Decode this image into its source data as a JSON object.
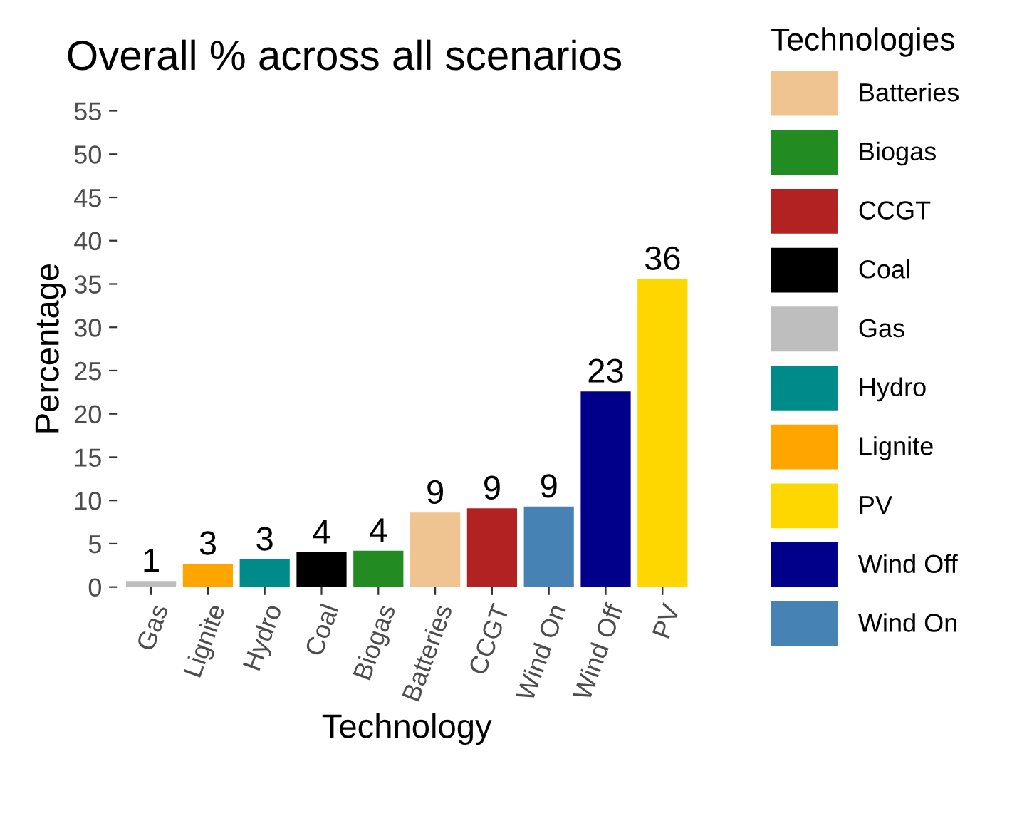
{
  "chart_data": {
    "type": "bar",
    "title": "Overall % across all scenarios",
    "xlabel": "Technology",
    "ylabel": "Percentage",
    "legend_title": "Technologies",
    "legend": "right",
    "grid": false,
    "categories": [
      "Gas",
      "Lignite",
      "Hydro",
      "Coal",
      "Biogas",
      "Batteries",
      "CCGT",
      "Wind On",
      "Wind Off",
      "PV"
    ],
    "ylim": [
      0,
      55
    ],
    "yticks": [
      0,
      5,
      10,
      15,
      20,
      25,
      30,
      35,
      40,
      45,
      50,
      55
    ],
    "series": [
      {
        "name": "Batteries",
        "color": "#f0c490",
        "values": [
          null,
          null,
          null,
          null,
          null,
          8.6,
          null,
          null,
          null,
          null
        ],
        "value_labels": [
          null,
          null,
          null,
          null,
          null,
          "9",
          null,
          null,
          null,
          null
        ]
      },
      {
        "name": "Biogas",
        "color": "#228b22",
        "values": [
          null,
          null,
          null,
          null,
          4.2,
          null,
          null,
          null,
          null,
          null
        ],
        "value_labels": [
          null,
          null,
          null,
          null,
          "4",
          null,
          null,
          null,
          null,
          null
        ]
      },
      {
        "name": "CCGT",
        "color": "#b22222",
        "values": [
          null,
          null,
          null,
          null,
          null,
          null,
          9.1,
          null,
          null,
          null
        ],
        "value_labels": [
          null,
          null,
          null,
          null,
          null,
          null,
          "9",
          null,
          null,
          null
        ]
      },
      {
        "name": "Coal",
        "color": "#000000",
        "values": [
          null,
          null,
          null,
          4.0,
          null,
          null,
          null,
          null,
          null,
          null
        ],
        "value_labels": [
          null,
          null,
          null,
          "4",
          null,
          null,
          null,
          null,
          null,
          null
        ]
      },
      {
        "name": "Gas",
        "color": "#bebebe",
        "values": [
          0.7,
          null,
          null,
          null,
          null,
          null,
          null,
          null,
          null,
          null
        ],
        "value_labels": [
          "1",
          null,
          null,
          null,
          null,
          null,
          null,
          null,
          null,
          null
        ]
      },
      {
        "name": "Hydro",
        "color": "#008b8b",
        "values": [
          null,
          null,
          3.2,
          null,
          null,
          null,
          null,
          null,
          null,
          null
        ],
        "value_labels": [
          null,
          null,
          "3",
          null,
          null,
          null,
          null,
          null,
          null,
          null
        ]
      },
      {
        "name": "Lignite",
        "color": "#ffa500",
        "values": [
          null,
          2.7,
          null,
          null,
          null,
          null,
          null,
          null,
          null,
          null
        ],
        "value_labels": [
          null,
          "3",
          null,
          null,
          null,
          null,
          null,
          null,
          null,
          null
        ]
      },
      {
        "name": "PV",
        "color": "#ffd700",
        "values": [
          null,
          null,
          null,
          null,
          null,
          null,
          null,
          null,
          null,
          35.6
        ],
        "value_labels": [
          null,
          null,
          null,
          null,
          null,
          null,
          null,
          null,
          null,
          "36"
        ]
      },
      {
        "name": "Wind Off",
        "color": "#00008b",
        "values": [
          null,
          null,
          null,
          null,
          null,
          null,
          null,
          null,
          22.6,
          null
        ],
        "value_labels": [
          null,
          null,
          null,
          null,
          null,
          null,
          null,
          null,
          "23",
          null
        ]
      },
      {
        "name": "Wind On",
        "color": "#4682b4",
        "values": [
          null,
          null,
          null,
          null,
          null,
          null,
          null,
          9.3,
          null,
          null
        ],
        "value_labels": [
          null,
          null,
          null,
          null,
          null,
          null,
          null,
          "9",
          null,
          null
        ]
      }
    ]
  }
}
